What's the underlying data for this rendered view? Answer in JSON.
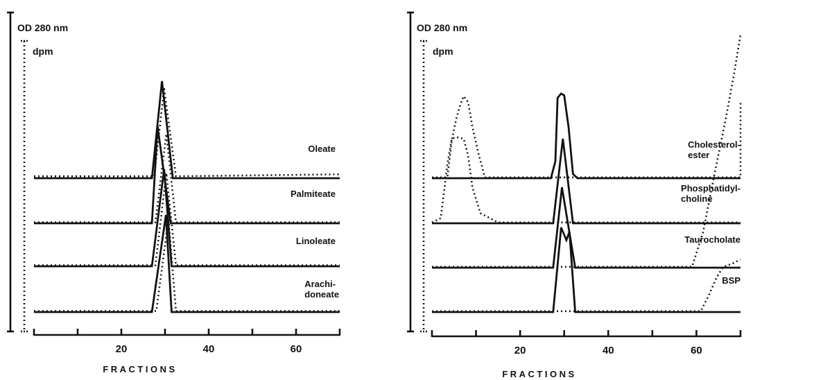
{
  "chart_data": [
    {
      "type": "line",
      "y_axis_solid_label": "OD 280 nm",
      "y_axis_dotted_label": "dpm",
      "xlabel": "FRACTIONS",
      "xlim": [
        0,
        70
      ],
      "x_ticks": [
        0,
        10,
        20,
        30,
        40,
        50,
        60,
        70
      ],
      "x_tick_labels": [
        "20",
        "40",
        "60"
      ],
      "x_tick_label_values": [
        20,
        40,
        60
      ],
      "traces": [
        {
          "label": "Oleate",
          "od": [
            [
              0,
              0
            ],
            [
              27,
              0
            ],
            [
              29.3,
              1.0
            ],
            [
              31.8,
              0
            ],
            [
              70,
              0
            ]
          ],
          "dpm": [
            [
              0,
              0.02
            ],
            [
              27.5,
              0.02
            ],
            [
              29.8,
              0.92
            ],
            [
              32.5,
              0.02
            ],
            [
              70,
              0.04
            ]
          ]
        },
        {
          "label": "Palmiteate",
          "od": [
            [
              0,
              0
            ],
            [
              27,
              0
            ],
            [
              28.3,
              1.0
            ],
            [
              31.3,
              0
            ],
            [
              70,
              0
            ]
          ],
          "dpm": [
            [
              0,
              0.01
            ],
            [
              27.8,
              0.01
            ],
            [
              30.3,
              0.92
            ],
            [
              32.5,
              0.01
            ],
            [
              70,
              0.01
            ]
          ]
        },
        {
          "label": "Linoleate",
          "od": [
            [
              0,
              0
            ],
            [
              27,
              0
            ],
            [
              29.8,
              1.0
            ],
            [
              31.5,
              0
            ],
            [
              70,
              0
            ]
          ],
          "dpm": [
            [
              0,
              0.01
            ],
            [
              27.8,
              0.01
            ],
            [
              30.3,
              0.96
            ],
            [
              32.5,
              0.01
            ],
            [
              70,
              0.01
            ]
          ]
        },
        {
          "label": "Arachi- doneate",
          "od": [
            [
              0,
              0
            ],
            [
              27,
              0
            ],
            [
              30.2,
              1.0
            ],
            [
              31.5,
              0
            ],
            [
              70,
              0
            ]
          ],
          "dpm": [
            [
              0,
              0.01
            ],
            [
              28,
              0.01
            ],
            [
              30.8,
              0.96
            ],
            [
              32.5,
              0.01
            ],
            [
              70,
              0.01
            ]
          ]
        }
      ]
    },
    {
      "type": "line",
      "y_axis_solid_label": "OD 280 nm",
      "y_axis_dotted_label": "dpm",
      "xlabel": "FRACTIONS",
      "xlim": [
        0,
        70
      ],
      "x_ticks": [
        0,
        10,
        20,
        30,
        40,
        50,
        60,
        70
      ],
      "x_tick_labels": [
        "20",
        "40",
        "60"
      ],
      "x_tick_label_values": [
        20,
        40,
        60
      ],
      "traces": [
        {
          "label": "Cholesterol- ester",
          "od": [
            [
              0,
              0
            ],
            [
              27,
              0
            ],
            [
              28,
              0.2
            ],
            [
              28.5,
              0.95
            ],
            [
              29.3,
              1.0
            ],
            [
              30,
              0.98
            ],
            [
              31,
              0.6
            ],
            [
              32,
              0.05
            ],
            [
              33,
              0
            ],
            [
              70,
              0
            ]
          ],
          "dpm": [
            [
              0,
              0.01
            ],
            [
              3.5,
              0.01
            ],
            [
              4.5,
              0.45
            ],
            [
              5.5,
              0.7
            ],
            [
              6.5,
              0.88
            ],
            [
              7.2,
              0.97
            ],
            [
              8.2,
              0.9
            ],
            [
              9.2,
              0.6
            ],
            [
              10.5,
              0.3
            ],
            [
              12,
              0.01
            ],
            [
              70,
              0.01
            ],
            [
              70,
              0.9
            ]
          ]
        },
        {
          "label": "Phosphatidyl- choline",
          "od": [
            [
              0,
              0
            ],
            [
              27.5,
              0
            ],
            [
              29.7,
              1.0
            ],
            [
              32,
              0
            ],
            [
              70,
              0
            ]
          ],
          "dpm": [
            [
              0,
              0.01
            ],
            [
              2,
              0.06
            ],
            [
              3.5,
              0.7
            ],
            [
              4.5,
              1.0
            ],
            [
              5.5,
              1.02
            ],
            [
              7.2,
              1.0
            ],
            [
              8.2,
              0.8
            ],
            [
              9.2,
              0.42
            ],
            [
              11,
              0.12
            ],
            [
              15,
              0.01
            ],
            [
              70,
              0.01
            ]
          ]
        },
        {
          "label": "Taurocholate",
          "od": [
            [
              0,
              0
            ],
            [
              27.5,
              0
            ],
            [
              29.5,
              0.95
            ],
            [
              32.5,
              0
            ],
            [
              70,
              0
            ]
          ],
          "dpm": [
            [
              0,
              0.01
            ],
            [
              59,
              0.01
            ],
            [
              61.5,
              0.42
            ],
            [
              64,
              1.08
            ],
            [
              66.5,
              1.72
            ],
            [
              68.5,
              2.28
            ],
            [
              70,
              2.75
            ]
          ]
        },
        {
          "label": "BSP",
          "od": [
            [
              0,
              0
            ],
            [
              27.5,
              0
            ],
            [
              29.3,
              1.0
            ],
            [
              30.5,
              0.85
            ],
            [
              31.2,
              0.95
            ],
            [
              32.5,
              0
            ],
            [
              70,
              0
            ]
          ],
          "dpm": [
            [
              0,
              0.01
            ],
            [
              61,
              0.01
            ],
            [
              63,
              0.22
            ],
            [
              64.5,
              0.4
            ],
            [
              66,
              0.53
            ],
            [
              68,
              0.57
            ],
            [
              70,
              0.62
            ]
          ]
        }
      ]
    }
  ]
}
